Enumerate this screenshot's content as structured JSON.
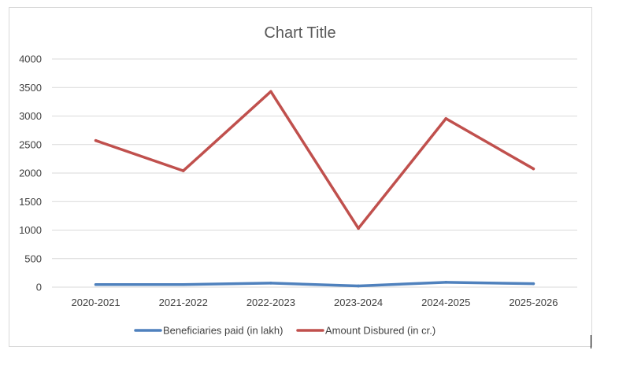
{
  "chart_data": {
    "type": "line",
    "title": "Chart Title",
    "categories": [
      "2020-2021",
      "2021-2022",
      "2022-2023",
      "2023-2024",
      "2024-2025",
      "2025-2026"
    ],
    "series": [
      {
        "name": "Beneficiaries paid (in lakh)",
        "color": "#4f81bd",
        "values": [
          45,
          45,
          70,
          20,
          85,
          60
        ]
      },
      {
        "name": "Amount Disbured (in cr.)",
        "color": "#c0504d",
        "values": [
          2570,
          2040,
          3430,
          1030,
          2955,
          2075
        ]
      }
    ],
    "y_ticks": [
      "0",
      "500",
      "1000",
      "1500",
      "2000",
      "2500",
      "3000",
      "3500",
      "4000"
    ],
    "ylim": [
      0,
      4000
    ],
    "grid": true,
    "legend_position": "bottom"
  }
}
